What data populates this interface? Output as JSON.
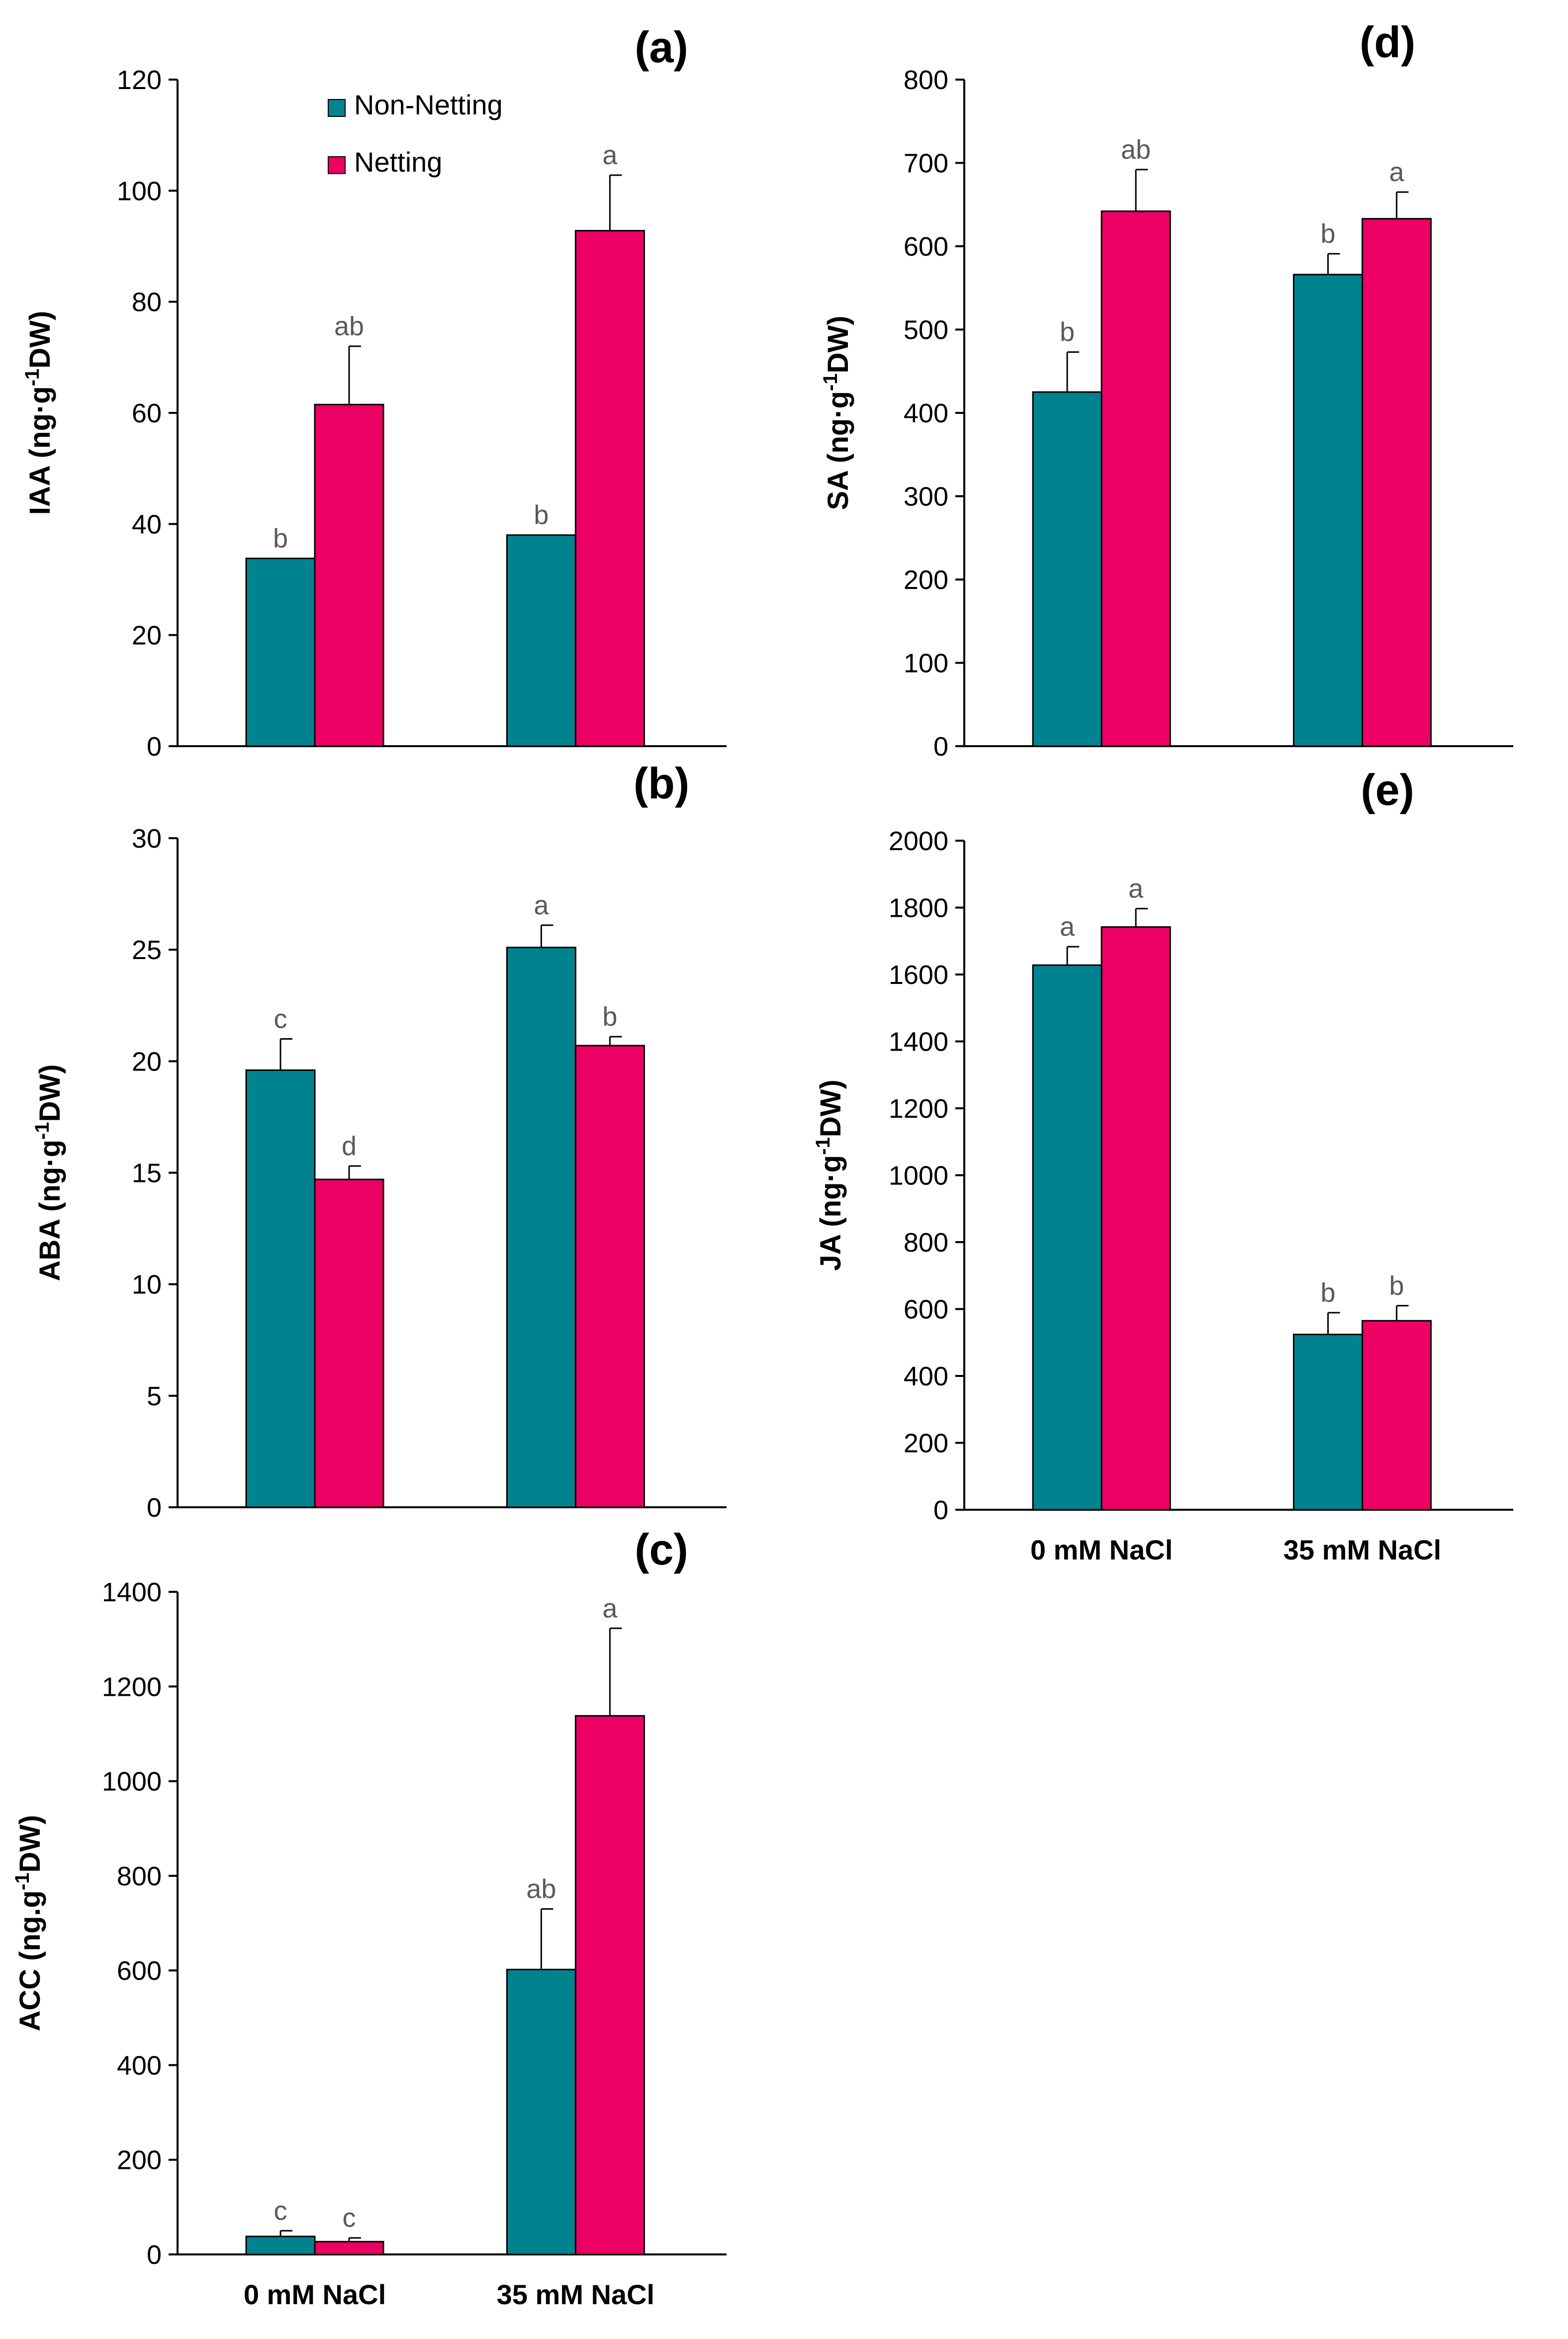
{
  "colors": {
    "non_netting": "#00838F",
    "netting": "#EC0064",
    "axis": "#000000",
    "significance": "#595959"
  },
  "legend": {
    "non_netting": "Non-Netting",
    "netting": "Netting"
  },
  "chart_data": [
    {
      "id": "a",
      "panel_label": "(a)",
      "type": "bar",
      "ylabel": "IAA (ng·g-1DW)",
      "ylabel_parts": [
        "IAA (ng·g",
        "-1",
        "DW)"
      ],
      "ylim": [
        0,
        120
      ],
      "yticks": [
        "0",
        "20",
        "40",
        "60",
        "80",
        "100",
        "120"
      ],
      "categories": [
        "0 mM NaCl",
        "35 mM NaCl"
      ],
      "show_categories": false,
      "series": [
        {
          "name": "Non-Netting",
          "values": [
            33.8,
            38
          ],
          "errors": [
            0,
            0
          ],
          "sig": [
            "b",
            "b"
          ]
        },
        {
          "name": "Netting",
          "values": [
            61.5,
            92.8
          ],
          "errors": [
            10.5,
            10
          ],
          "sig": [
            "ab",
            "a"
          ]
        }
      ]
    },
    {
      "id": "b",
      "panel_label": "(b)",
      "type": "bar",
      "ylabel": "ABA (ng·g-1DW)",
      "ylabel_parts": [
        "ABA (ng·g",
        "-1",
        "DW)"
      ],
      "ylim": [
        0,
        30
      ],
      "yticks": [
        "0",
        "5",
        "10",
        "15",
        "20",
        "25",
        "30"
      ],
      "categories": [
        "0 mM NaCl",
        "35 mM NaCl"
      ],
      "show_categories": false,
      "series": [
        {
          "name": "Non-Netting",
          "values": [
            19.6,
            25.1
          ],
          "errors": [
            1.4,
            1.0
          ],
          "sig": [
            "c",
            "a"
          ]
        },
        {
          "name": "Netting",
          "values": [
            14.7,
            20.7
          ],
          "errors": [
            0.6,
            0.4
          ],
          "sig": [
            "d",
            "b"
          ]
        }
      ]
    },
    {
      "id": "c",
      "panel_label": "(c)",
      "type": "bar",
      "ylabel": "ACC (ng.g-1DW)",
      "ylabel_parts": [
        "ACC (ng.g",
        "-1",
        "DW)"
      ],
      "ylim": [
        0,
        1400
      ],
      "yticks": [
        "0",
        "200",
        "400",
        "600",
        "800",
        "1000",
        "1200",
        "1400"
      ],
      "categories": [
        "0 mM NaCl",
        "35 mM NaCl"
      ],
      "show_categories": true,
      "series": [
        {
          "name": "Non-Netting",
          "values": [
            38,
            602
          ],
          "errors": [
            12,
            128
          ],
          "sig": [
            "c",
            "ab"
          ]
        },
        {
          "name": "Netting",
          "values": [
            27,
            1138
          ],
          "errors": [
            8,
            185
          ],
          "sig": [
            "c",
            "a"
          ]
        }
      ]
    },
    {
      "id": "d",
      "panel_label": "(d)",
      "type": "bar",
      "ylabel": "SA (ng·g-1DW)",
      "ylabel_parts": [
        "SA (ng·g",
        "-1",
        "DW)"
      ],
      "ylim": [
        0,
        800
      ],
      "yticks": [
        "0",
        "100",
        "200",
        "300",
        "400",
        "500",
        "600",
        "700",
        "800"
      ],
      "categories": [
        "0 mM NaCl",
        "35 mM NaCl"
      ],
      "show_categories": false,
      "series": [
        {
          "name": "Non-Netting",
          "values": [
            425,
            566
          ],
          "errors": [
            48,
            25
          ],
          "sig": [
            "b",
            "b"
          ]
        },
        {
          "name": "Netting",
          "values": [
            642,
            633
          ],
          "errors": [
            50,
            32
          ],
          "sig": [
            "ab",
            "a"
          ]
        }
      ]
    },
    {
      "id": "e",
      "panel_label": "(e)",
      "type": "bar",
      "ylabel": "JA (ng·g-1DW)",
      "ylabel_parts": [
        "JA (ng·g",
        "-1",
        "DW)"
      ],
      "ylim": [
        0,
        2000
      ],
      "yticks": [
        "0",
        "200",
        "400",
        "600",
        "800",
        "1000",
        "1200",
        "1400",
        "1600",
        "1800",
        "2000"
      ],
      "categories": [
        "0 mM NaCl",
        "35 mM NaCl"
      ],
      "show_categories": true,
      "series": [
        {
          "name": "Non-Netting",
          "values": [
            1628,
            524
          ],
          "errors": [
            55,
            65
          ],
          "sig": [
            "a",
            "b"
          ]
        },
        {
          "name": "Netting",
          "values": [
            1742,
            565
          ],
          "errors": [
            55,
            45
          ],
          "sig": [
            "a",
            "b"
          ]
        }
      ]
    }
  ]
}
